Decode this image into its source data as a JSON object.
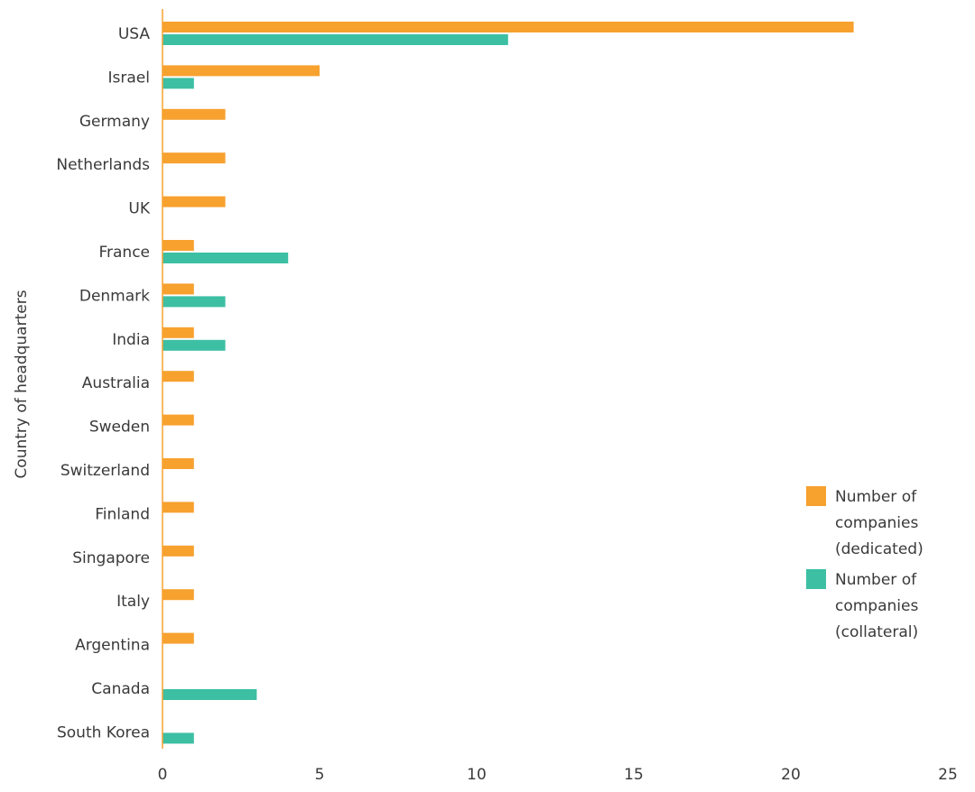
{
  "chart_data": {
    "type": "bar",
    "orientation": "horizontal",
    "ylabel": "Country of headquarters",
    "xlabel": "",
    "xlim": [
      0,
      25
    ],
    "xticks": [
      0,
      5,
      10,
      15,
      20,
      25
    ],
    "grid": false,
    "legend_position": "right",
    "categories": [
      "USA",
      "Israel",
      "Germany",
      "Netherlands",
      "UK",
      "France",
      "Denmark",
      "India",
      "Australia",
      "Sweden",
      "Switzerland",
      "Finland",
      "Singapore",
      "Italy",
      "Argentina",
      "Canada",
      "South Korea"
    ],
    "series": [
      {
        "name": "Number of companies (dedicated)",
        "legend_lines": [
          "Number of",
          "companies",
          "(dedicated)"
        ],
        "color": "#f7a12f",
        "values": [
          22,
          5,
          2,
          2,
          2,
          1,
          1,
          1,
          1,
          1,
          1,
          1,
          1,
          1,
          1,
          0,
          0
        ]
      },
      {
        "name": "Number of companies (collateral)",
        "legend_lines": [
          "Number of",
          "companies",
          "(collateral)"
        ],
        "color": "#3dbfa4",
        "values": [
          11,
          1,
          0,
          0,
          0,
          4,
          2,
          2,
          0,
          0,
          0,
          0,
          0,
          0,
          0,
          3,
          1
        ]
      }
    ],
    "axis_color": "#f7a12f"
  }
}
